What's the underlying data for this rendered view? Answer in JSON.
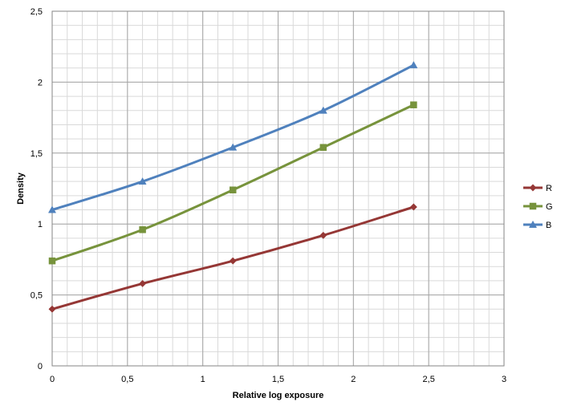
{
  "chart_data": {
    "type": "line",
    "xlabel": "Relative log exposure",
    "ylabel": "Density",
    "xlim": [
      0,
      3
    ],
    "ylim": [
      0,
      2.5
    ],
    "x_ticks": [
      "0",
      "0,5",
      "1",
      "1,5",
      "2",
      "2,5",
      "3"
    ],
    "y_ticks": [
      "0",
      "0,5",
      "1",
      "1,5",
      "2",
      "2,5"
    ],
    "x_tick_values": [
      0,
      0.5,
      1,
      1.5,
      2,
      2.5,
      3
    ],
    "y_tick_values": [
      0,
      0.5,
      1,
      1.5,
      2,
      2.5
    ],
    "grid": true,
    "minor_grid": true,
    "legend": "right",
    "series": [
      {
        "name": "R",
        "color": "#953735",
        "marker": "diamond",
        "x": [
          0,
          0.6,
          1.2,
          1.8,
          2.4
        ],
        "y": [
          0.4,
          0.58,
          0.74,
          0.92,
          1.12
        ]
      },
      {
        "name": "G",
        "color": "#77933C",
        "marker": "square",
        "x": [
          0,
          0.6,
          1.2,
          1.8,
          2.4
        ],
        "y": [
          0.74,
          0.96,
          1.24,
          1.54,
          1.84
        ]
      },
      {
        "name": "B",
        "color": "#4F81BD",
        "marker": "triangle",
        "x": [
          0,
          0.6,
          1.2,
          1.8,
          2.4
        ],
        "y": [
          1.1,
          1.3,
          1.54,
          1.8,
          2.12
        ]
      }
    ]
  }
}
